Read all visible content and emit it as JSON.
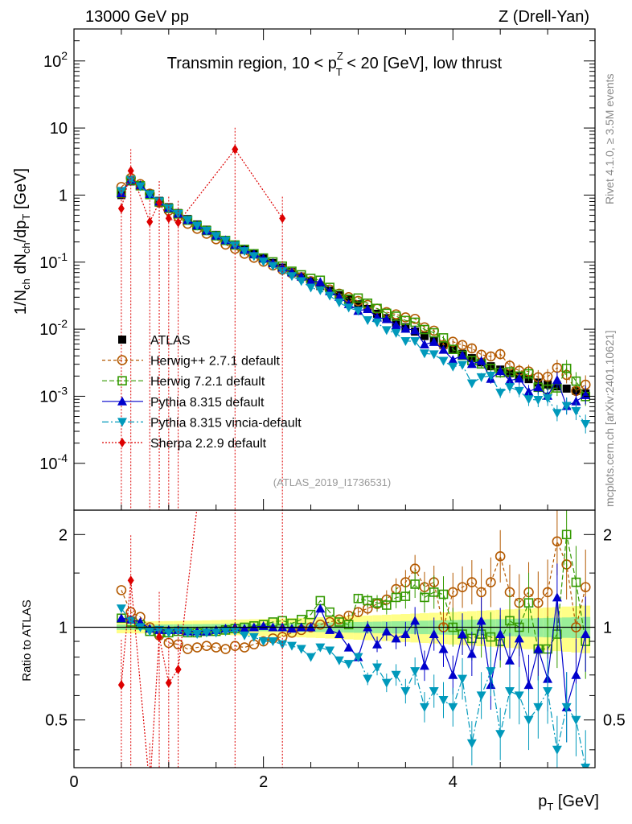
{
  "header": {
    "left": "13000 GeV pp",
    "right": "Z (Drell-Yan)",
    "plot_title_part1": "Transmin region, 10 < p",
    "plot_title_sup": "Z",
    "plot_title_sub": "T",
    "plot_title_part2": " < 20 [GeV], low thrust",
    "side_rivet": "Rivet 4.1.0, ≥ 3.5M events",
    "side_mcplots": "mcplots.cern.ch [arXiv:2401.10621]",
    "analysis_id": "(ATLAS_2019_I1736531)"
  },
  "axes": {
    "ylabel_main": "1/N_ch dN_ch/dp_T [GeV]",
    "ylabel_ratio": "Ratio to ATLAS",
    "xlabel": "p_T [GeV]",
    "x_ticks": [
      "0",
      "2",
      "4"
    ],
    "y_main_ticks": [
      "10^-4",
      "10^-3",
      "10^-2",
      "10^-1",
      "1",
      "10",
      "10^2"
    ],
    "y_ratio_ticks": [
      "0.5",
      "1",
      "2"
    ]
  },
  "colors": {
    "atlas": "#000000",
    "herwigpp": "#b35900",
    "herwig7": "#339900",
    "pythia": "#0000cc",
    "vincia": "#0099bb",
    "sherpa": "#dd0000",
    "band_inner": "#99ee99",
    "band_outer": "#ffff88"
  },
  "chart_data": {
    "type": "scatter",
    "title": "Transmin region, 10 < pT^Z < 20 [GeV], low thrust",
    "xlabel": "pT [GeV]",
    "ylabel": "1/N_ch dN_ch/dp_T [GeV]",
    "xlim": [
      0,
      5.5
    ],
    "ylim": [
      2e-05,
      300
    ],
    "yscale": "log",
    "ratio_ylim": [
      0.35,
      2.4
    ],
    "ratio_yscale": "log",
    "x": [
      0.5,
      0.6,
      0.7,
      0.8,
      0.9,
      1.0,
      1.1,
      1.2,
      1.3,
      1.4,
      1.5,
      1.6,
      1.7,
      1.8,
      1.9,
      2.0,
      2.1,
      2.2,
      2.3,
      2.4,
      2.5,
      2.6,
      2.7,
      2.8,
      2.9,
      3.0,
      3.1,
      3.2,
      3.3,
      3.4,
      3.5,
      3.6,
      3.7,
      3.8,
      3.9,
      4.0,
      4.1,
      4.2,
      4.3,
      4.4,
      4.5,
      4.6,
      4.7,
      4.8,
      4.9,
      5.0,
      5.1,
      5.2,
      5.3,
      5.4
    ],
    "series": [
      {
        "name": "ATLAS",
        "key": "atlas",
        "values": [
          1.0,
          1.6,
          1.35,
          1.05,
          0.82,
          0.66,
          0.54,
          0.44,
          0.365,
          0.305,
          0.255,
          0.215,
          0.182,
          0.155,
          0.132,
          0.113,
          0.097,
          0.083,
          0.071,
          0.061,
          0.052,
          0.044,
          0.0375,
          0.032,
          0.0275,
          0.0235,
          0.02,
          0.017,
          0.0146,
          0.0125,
          0.0107,
          0.0092,
          0.0079,
          0.0068,
          0.0058,
          0.005,
          0.0043,
          0.0037,
          0.0032,
          0.0028,
          0.0025,
          0.0022,
          0.002,
          0.0018,
          0.0016,
          0.0015,
          0.0014,
          0.0013,
          0.0012,
          0.0011
        ]
      },
      {
        "name": "Herwig++ 2.7.1 default",
        "key": "herwigpp",
        "ratio": [
          1.32,
          1.12,
          1.08,
          1.0,
          0.94,
          0.89,
          0.88,
          0.85,
          0.86,
          0.87,
          0.86,
          0.85,
          0.87,
          0.86,
          0.88,
          0.9,
          0.92,
          0.93,
          0.96,
          0.98,
          1.0,
          1.02,
          1.04,
          1.06,
          1.09,
          1.12,
          1.15,
          1.19,
          1.23,
          1.33,
          1.4,
          1.55,
          1.35,
          1.4,
          1.0,
          1.3,
          1.35,
          1.4,
          1.3,
          1.4,
          1.7,
          1.3,
          1.2,
          1.3,
          1.2,
          1.3,
          1.9,
          1.6,
          1.0,
          1.35
        ]
      },
      {
        "name": "Herwig 7.2.1 default",
        "key": "herwig7",
        "ratio": [
          1.07,
          1.04,
          1.02,
          0.97,
          0.96,
          0.96,
          0.97,
          0.96,
          0.96,
          0.97,
          0.97,
          0.98,
          0.99,
          1.0,
          1.01,
          1.02,
          1.04,
          1.05,
          1.03,
          1.06,
          1.1,
          1.22,
          1.12,
          1.04,
          1.02,
          1.24,
          1.22,
          1.2,
          1.18,
          1.25,
          1.26,
          1.38,
          1.25,
          1.3,
          1.28,
          1.0,
          0.95,
          0.92,
          0.95,
          0.93,
          0.9,
          1.05,
          1.0,
          1.2,
          0.85,
          0.85,
          0.95,
          2.0,
          1.4,
          0.9
        ]
      },
      {
        "name": "Pythia 8.315 default",
        "key": "pythia",
        "ratio": [
          1.07,
          1.06,
          1.04,
          0.99,
          0.98,
          0.98,
          0.98,
          0.97,
          0.97,
          0.97,
          0.98,
          0.99,
          1.0,
          0.99,
          1.0,
          1.01,
          1.0,
          1.0,
          0.99,
          1.0,
          1.0,
          1.15,
          0.98,
          0.95,
          0.86,
          0.8,
          1.0,
          0.88,
          0.97,
          0.92,
          0.95,
          1.05,
          0.75,
          0.95,
          0.85,
          0.7,
          0.95,
          0.82,
          1.05,
          0.65,
          0.95,
          0.78,
          0.92,
          0.65,
          0.85,
          0.68,
          1.25,
          0.55,
          0.7,
          0.95
        ]
      },
      {
        "name": "Pythia 8.315 vincia-default",
        "key": "vincia",
        "ratio": [
          1.15,
          1.05,
          1.0,
          0.97,
          0.98,
          0.96,
          0.97,
          0.96,
          0.95,
          0.96,
          0.96,
          0.97,
          0.97,
          0.94,
          0.93,
          0.9,
          0.9,
          0.88,
          0.87,
          0.85,
          0.8,
          0.86,
          0.84,
          0.78,
          0.76,
          0.8,
          0.68,
          0.74,
          0.66,
          0.7,
          0.62,
          0.72,
          0.55,
          0.62,
          0.58,
          0.55,
          0.68,
          0.42,
          0.6,
          0.72,
          0.45,
          0.62,
          0.6,
          0.5,
          0.55,
          0.62,
          0.4,
          0.55,
          0.5,
          0.35
        ]
      },
      {
        "name": "Sherpa 2.2.9 default",
        "key": "sherpa",
        "x": [
          0.5,
          0.6,
          0.8,
          0.9,
          1.0,
          1.1,
          1.7,
          2.2
        ],
        "values": [
          0.63,
          2.3,
          0.4,
          0.77,
          0.45,
          0.39,
          4.8,
          0.45
        ],
        "ratio": [
          0.65,
          1.42,
          0.3,
          0.93,
          0.66,
          0.73,
          28,
          5.4
        ]
      }
    ],
    "legend": [
      "ATLAS",
      "Herwig++ 2.7.1 default",
      "Herwig 7.2.1 default",
      "Pythia 8.315 default",
      "Pythia 8.315 vincia-default",
      "Sherpa 2.2.9 default"
    ]
  }
}
